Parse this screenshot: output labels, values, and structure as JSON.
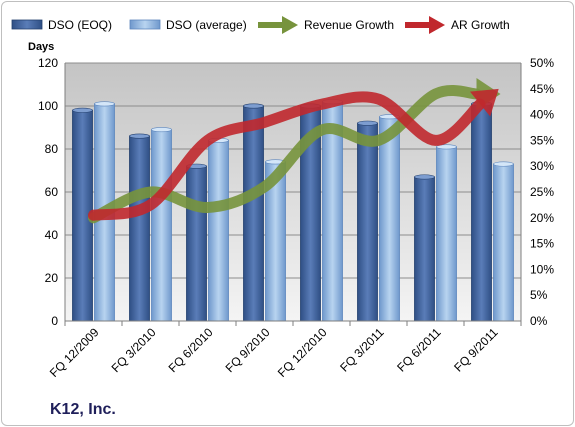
{
  "chart_data": {
    "type": "bar",
    "title": "",
    "company_label": "K12, Inc.",
    "left_axis": {
      "label": "Days",
      "ylim": [
        0,
        120
      ],
      "ticks": [
        "0",
        "20",
        "40",
        "60",
        "80",
        "100",
        "120"
      ]
    },
    "right_axis": {
      "label": "",
      "ylim": [
        0,
        50
      ],
      "ticks": [
        "0%",
        "5%",
        "10%",
        "15%",
        "20%",
        "25%",
        "30%",
        "35%",
        "40%",
        "45%",
        "50%"
      ]
    },
    "categories": [
      "FQ 12/2009",
      "FQ 3/2010",
      "FQ 6/2010",
      "FQ 9/2010",
      "FQ 12/2010",
      "FQ 3/2011",
      "FQ 6/2011",
      "FQ 9/2011"
    ],
    "series": [
      {
        "name": "DSO (EOQ)",
        "kind": "bar",
        "axis": "left",
        "color": "#4a6ea8",
        "values": [
          98,
          86,
          72,
          100,
          100,
          92,
          67,
          101
        ]
      },
      {
        "name": "DSO (average)",
        "kind": "bar",
        "axis": "left",
        "color": "#8fb4e0",
        "values": [
          101,
          89,
          84,
          74,
          102,
          95,
          81,
          73
        ]
      },
      {
        "name": "Revenue Growth",
        "kind": "arrow-line",
        "axis": "right",
        "color": "#77933c",
        "values": [
          20,
          25,
          22,
          26,
          37,
          35,
          44,
          44
        ]
      },
      {
        "name": "AR Growth",
        "kind": "arrow-line",
        "axis": "right",
        "color": "#c0282d",
        "values": [
          20.5,
          22.5,
          35,
          38.5,
          42,
          43,
          35,
          44
        ]
      }
    ],
    "legend_position": "top",
    "grid": true
  }
}
